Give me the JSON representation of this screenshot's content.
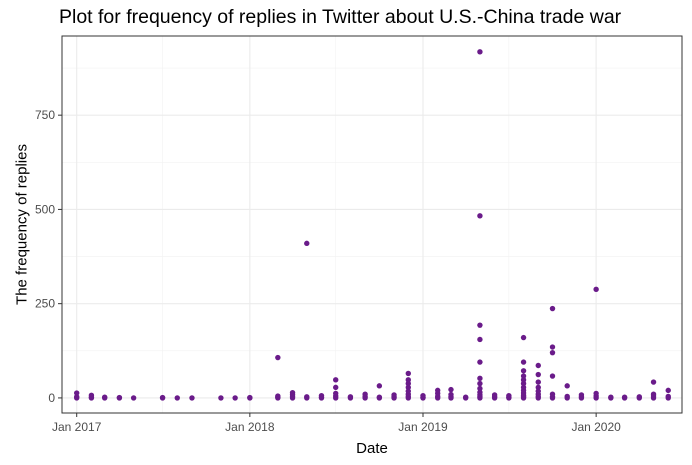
{
  "chart_data": {
    "type": "scatter",
    "title": "Plot for frequency of replies in Twitter about U.S.-China trade war",
    "xlabel": "Date",
    "ylabel": "The frequency of replies",
    "x_ticks": [
      "Jan 2017",
      "Jan 2018",
      "Jan 2019",
      "Jan 2020"
    ],
    "y_ticks": [
      0,
      250,
      500,
      750
    ],
    "xlim": [
      "2016-12-01",
      "2020-06-30"
    ],
    "ylim": [
      -40,
      960
    ],
    "grid": true,
    "point_color": "#6a1b8a",
    "theme": "bw",
    "series": [
      {
        "points": [
          [
            "2017-01-01",
            0
          ],
          [
            "2017-01-01",
            3
          ],
          [
            "2017-01-01",
            13
          ],
          [
            "2017-02-01",
            0
          ],
          [
            "2017-02-01",
            2
          ],
          [
            "2017-02-01",
            7
          ],
          [
            "2017-03-01",
            0
          ],
          [
            "2017-03-01",
            2
          ],
          [
            "2017-04-01",
            0
          ],
          [
            "2017-04-01",
            1
          ],
          [
            "2017-05-01",
            0
          ],
          [
            "2017-07-01",
            0
          ],
          [
            "2017-07-01",
            1
          ],
          [
            "2017-08-01",
            0
          ],
          [
            "2017-09-01",
            0
          ],
          [
            "2017-11-01",
            0
          ],
          [
            "2017-12-01",
            0
          ],
          [
            "2018-01-01",
            0
          ],
          [
            "2018-01-01",
            1
          ],
          [
            "2018-03-01",
            0
          ],
          [
            "2018-03-01",
            2
          ],
          [
            "2018-03-01",
            5
          ],
          [
            "2018-03-01",
            107
          ],
          [
            "2018-04-01",
            0
          ],
          [
            "2018-04-01",
            4
          ],
          [
            "2018-04-01",
            9
          ],
          [
            "2018-04-01",
            14
          ],
          [
            "2018-05-01",
            0
          ],
          [
            "2018-05-01",
            3
          ],
          [
            "2018-05-01",
            410
          ],
          [
            "2018-06-01",
            0
          ],
          [
            "2018-06-01",
            2
          ],
          [
            "2018-06-01",
            6
          ],
          [
            "2018-07-01",
            0
          ],
          [
            "2018-07-01",
            5
          ],
          [
            "2018-07-01",
            12
          ],
          [
            "2018-07-01",
            28
          ],
          [
            "2018-07-01",
            48
          ],
          [
            "2018-08-01",
            0
          ],
          [
            "2018-08-01",
            3
          ],
          [
            "2018-09-01",
            0
          ],
          [
            "2018-09-01",
            4
          ],
          [
            "2018-09-01",
            10
          ],
          [
            "2018-10-01",
            0
          ],
          [
            "2018-10-01",
            2
          ],
          [
            "2018-10-01",
            32
          ],
          [
            "2018-11-01",
            0
          ],
          [
            "2018-11-01",
            3
          ],
          [
            "2018-11-01",
            8
          ],
          [
            "2018-12-01",
            0
          ],
          [
            "2018-12-01",
            4
          ],
          [
            "2018-12-01",
            10
          ],
          [
            "2018-12-01",
            18
          ],
          [
            "2018-12-01",
            28
          ],
          [
            "2018-12-01",
            38
          ],
          [
            "2018-12-01",
            48
          ],
          [
            "2018-12-01",
            65
          ],
          [
            "2019-01-01",
            0
          ],
          [
            "2019-01-01",
            2
          ],
          [
            "2019-01-01",
            6
          ],
          [
            "2019-02-01",
            0
          ],
          [
            "2019-02-01",
            4
          ],
          [
            "2019-02-01",
            12
          ],
          [
            "2019-02-01",
            20
          ],
          [
            "2019-03-01",
            0
          ],
          [
            "2019-03-01",
            3
          ],
          [
            "2019-03-01",
            9
          ],
          [
            "2019-03-01",
            22
          ],
          [
            "2019-04-01",
            0
          ],
          [
            "2019-04-01",
            2
          ],
          [
            "2019-05-01",
            0
          ],
          [
            "2019-05-01",
            3
          ],
          [
            "2019-05-01",
            8
          ],
          [
            "2019-05-01",
            15
          ],
          [
            "2019-05-01",
            25
          ],
          [
            "2019-05-01",
            38
          ],
          [
            "2019-05-01",
            52
          ],
          [
            "2019-05-01",
            95
          ],
          [
            "2019-05-01",
            155
          ],
          [
            "2019-05-01",
            193
          ],
          [
            "2019-05-01",
            483
          ],
          [
            "2019-05-01",
            918
          ],
          [
            "2019-06-01",
            0
          ],
          [
            "2019-06-01",
            3
          ],
          [
            "2019-06-01",
            8
          ],
          [
            "2019-07-01",
            0
          ],
          [
            "2019-07-01",
            2
          ],
          [
            "2019-07-01",
            6
          ],
          [
            "2019-08-01",
            0
          ],
          [
            "2019-08-01",
            3
          ],
          [
            "2019-08-01",
            7
          ],
          [
            "2019-08-01",
            13
          ],
          [
            "2019-08-01",
            20
          ],
          [
            "2019-08-01",
            28
          ],
          [
            "2019-08-01",
            38
          ],
          [
            "2019-08-01",
            48
          ],
          [
            "2019-08-01",
            58
          ],
          [
            "2019-08-01",
            72
          ],
          [
            "2019-08-01",
            95
          ],
          [
            "2019-08-01",
            160
          ],
          [
            "2019-09-01",
            0
          ],
          [
            "2019-09-01",
            4
          ],
          [
            "2019-09-01",
            10
          ],
          [
            "2019-09-01",
            18
          ],
          [
            "2019-09-01",
            28
          ],
          [
            "2019-09-01",
            42
          ],
          [
            "2019-09-01",
            62
          ],
          [
            "2019-09-01",
            86
          ],
          [
            "2019-10-01",
            0
          ],
          [
            "2019-10-01",
            3
          ],
          [
            "2019-10-01",
            10
          ],
          [
            "2019-10-01",
            58
          ],
          [
            "2019-10-01",
            120
          ],
          [
            "2019-10-01",
            135
          ],
          [
            "2019-10-01",
            237
          ],
          [
            "2019-11-01",
            0
          ],
          [
            "2019-11-01",
            4
          ],
          [
            "2019-11-01",
            32
          ],
          [
            "2019-12-01",
            0
          ],
          [
            "2019-12-01",
            3
          ],
          [
            "2019-12-01",
            8
          ],
          [
            "2020-01-01",
            0
          ],
          [
            "2020-01-01",
            5
          ],
          [
            "2020-01-01",
            12
          ],
          [
            "2020-01-01",
            288
          ],
          [
            "2020-02-01",
            0
          ],
          [
            "2020-02-01",
            2
          ],
          [
            "2020-03-01",
            0
          ],
          [
            "2020-03-01",
            2
          ],
          [
            "2020-04-01",
            0
          ],
          [
            "2020-04-01",
            3
          ],
          [
            "2020-05-01",
            0
          ],
          [
            "2020-05-01",
            5
          ],
          [
            "2020-05-01",
            10
          ],
          [
            "2020-05-01",
            42
          ],
          [
            "2020-06-01",
            0
          ],
          [
            "2020-06-01",
            4
          ],
          [
            "2020-06-01",
            20
          ]
        ]
      }
    ]
  }
}
